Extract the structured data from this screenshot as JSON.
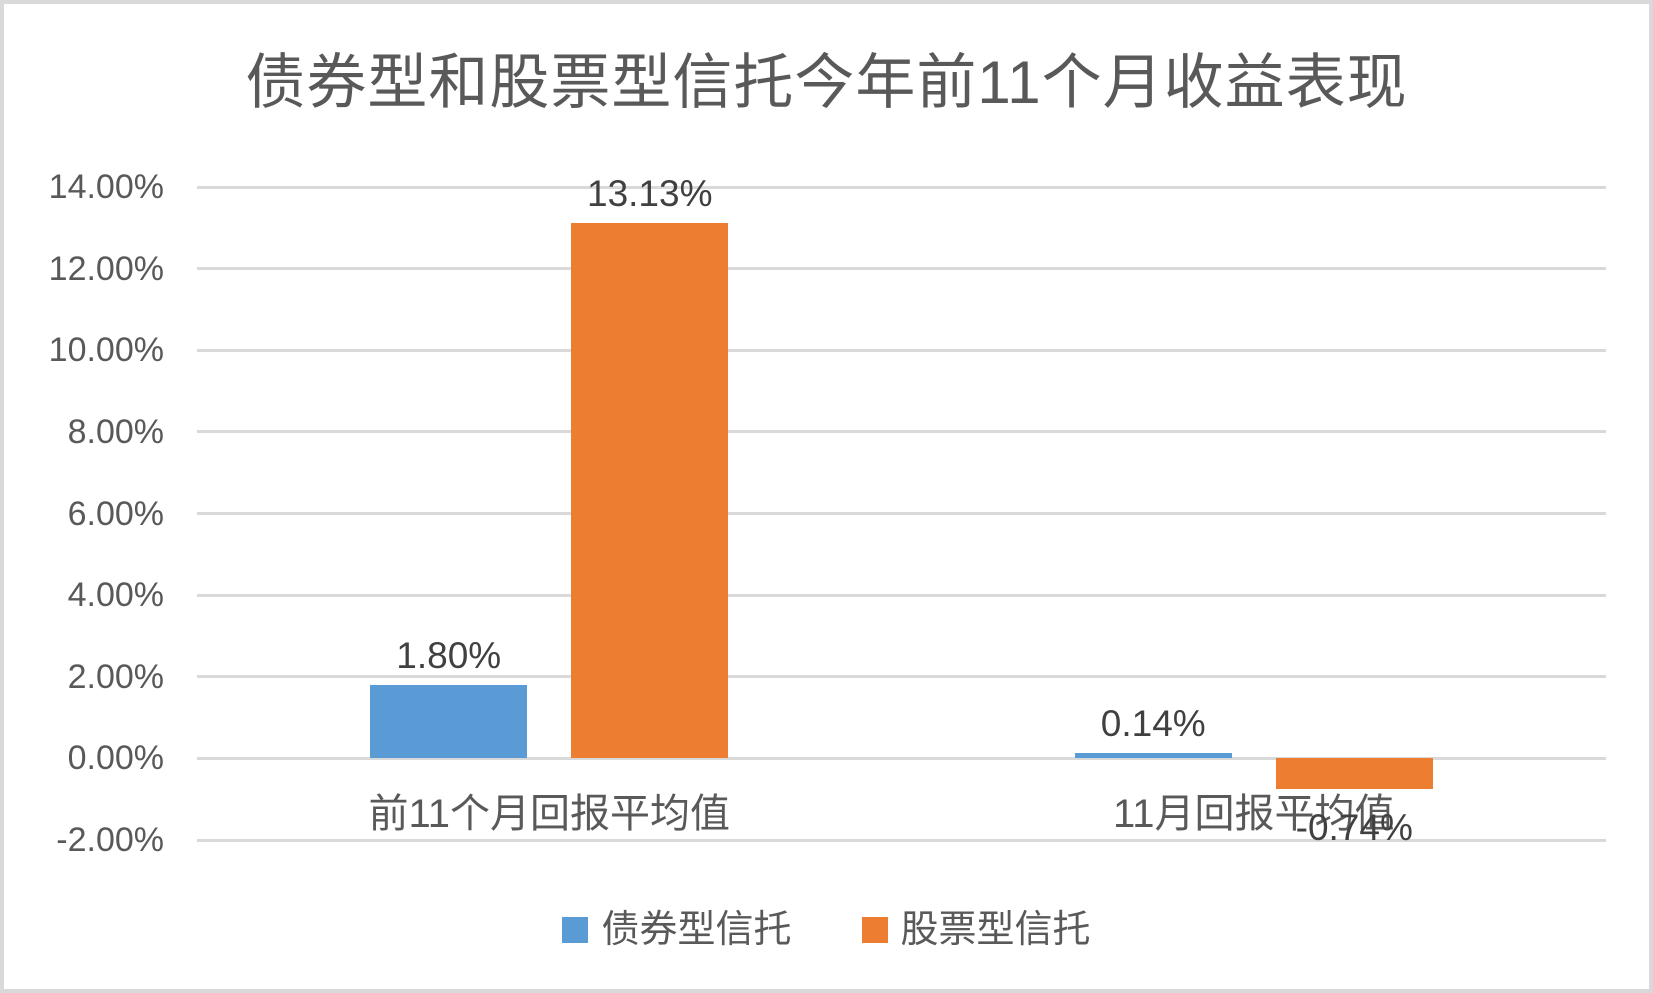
{
  "chart_data": {
    "type": "bar",
    "title": "债券型和股票型信托今年前11个月收益表现",
    "categories": [
      "前11个月回报平均值",
      "11月回报平均值"
    ],
    "series": [
      {
        "name": "债券型信托",
        "color": "#5B9BD5",
        "values": [
          1.8,
          0.14
        ],
        "data_labels": [
          "1.80%",
          "0.14%"
        ]
      },
      {
        "name": "股票型信托",
        "color": "#ED7D31",
        "values": [
          13.13,
          -0.74
        ],
        "data_labels": [
          "13.13%",
          "-0.74%"
        ]
      }
    ],
    "y_axis": {
      "min": -2,
      "max": 14,
      "step": 2,
      "tick_labels": [
        "14.00%",
        "12.00%",
        "10.00%",
        "8.00%",
        "6.00%",
        "4.00%",
        "2.00%",
        "0.00%",
        "-2.00%"
      ]
    },
    "grid": true,
    "legend_position": "bottom"
  },
  "colors": {
    "gridline": "#D9D9D9",
    "frame": "#D9D9D9",
    "axis_text": "#595959",
    "title_text": "#595959",
    "data_label_text": "#404040"
  }
}
